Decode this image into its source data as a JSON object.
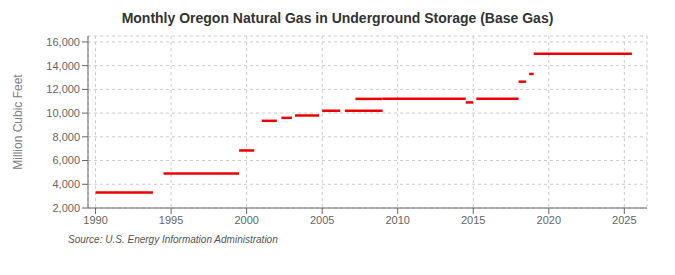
{
  "chart_data": {
    "type": "line",
    "title": "Monthly Oregon Natural Gas in Underground Storage (Base Gas)",
    "ylabel": "Million Cubic Feet",
    "annotations": [
      "Source: U.S. Energy Information Administration"
    ],
    "color": "#ee0000",
    "grid": true,
    "xlim": [
      1989.5,
      2026.5
    ],
    "ylim": [
      2000,
      16500
    ],
    "xticks": [
      1990,
      1995,
      2000,
      2005,
      2010,
      2015,
      2020,
      2025
    ],
    "yticks": [
      {
        "value": 2000,
        "label": "2,000"
      },
      {
        "value": 4000,
        "label": "4,000"
      },
      {
        "value": 6000,
        "label": "6,000"
      },
      {
        "value": 8000,
        "label": "8,000"
      },
      {
        "value": 10000,
        "label": "10,000"
      },
      {
        "value": 12000,
        "label": "12,000"
      },
      {
        "value": 14000,
        "label": "14,000"
      },
      {
        "value": 16000,
        "label": "16,000"
      }
    ],
    "segments": [
      {
        "x0": 1990.0,
        "x1": 1993.8,
        "y": 3300
      },
      {
        "x0": 1994.5,
        "x1": 1999.5,
        "y": 4900
      },
      {
        "x0": 1999.5,
        "x1": 2000.5,
        "y": 6850
      },
      {
        "x0": 2001.0,
        "x1": 2002.0,
        "y": 9350
      },
      {
        "x0": 2002.3,
        "x1": 2003.0,
        "y": 9600
      },
      {
        "x0": 2003.2,
        "x1": 2004.8,
        "y": 9800
      },
      {
        "x0": 2005.0,
        "x1": 2006.2,
        "y": 10200
      },
      {
        "x0": 2006.5,
        "x1": 2009.0,
        "y": 10200
      },
      {
        "x0": 2007.2,
        "x1": 2009.0,
        "y": 11200
      },
      {
        "x0": 2009.0,
        "x1": 2014.5,
        "y": 11200
      },
      {
        "x0": 2014.5,
        "x1": 2015.0,
        "y": 10900
      },
      {
        "x0": 2015.2,
        "x1": 2018.0,
        "y": 11200
      },
      {
        "x0": 2018.0,
        "x1": 2018.5,
        "y": 12650
      },
      {
        "x0": 2018.7,
        "x1": 2019.0,
        "y": 13300
      },
      {
        "x0": 2019.0,
        "x1": 2025.5,
        "y": 15000
      }
    ]
  }
}
